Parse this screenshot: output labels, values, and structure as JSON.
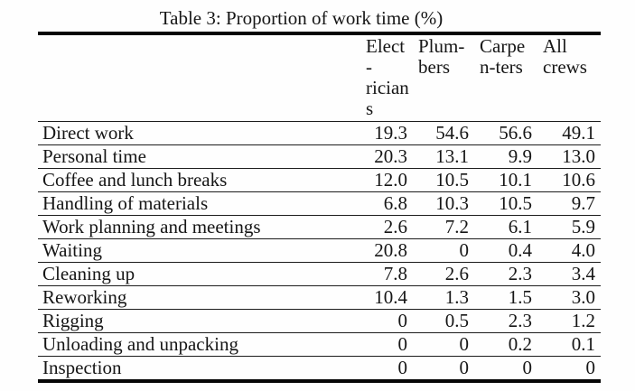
{
  "title": "Table 3: Proportion of work time (%)",
  "colors": {
    "ink": "#161616",
    "rule": "#050505",
    "background": "#fefefe"
  },
  "table": {
    "row_header_label": "",
    "columns": [
      {
        "name": "Electricians",
        "lines": [
          "Elect",
          "-",
          "rician",
          "s"
        ]
      },
      {
        "name": "Plumbers",
        "lines": [
          "Plum-",
          "bers"
        ]
      },
      {
        "name": "Carpenters",
        "lines": [
          "Carpe",
          "n-ters"
        ]
      },
      {
        "name": "All crews",
        "lines": [
          "All",
          "crews"
        ]
      }
    ],
    "rows": [
      {
        "label": "Direct work",
        "values": [
          "19.3",
          "54.6",
          "56.6",
          "49.1"
        ]
      },
      {
        "label": "Personal time",
        "values": [
          "20.3",
          "13.1",
          "9.9",
          "13.0"
        ]
      },
      {
        "label": "Coffee and lunch breaks",
        "values": [
          "12.0",
          "10.5",
          "10.1",
          "10.6"
        ]
      },
      {
        "label": "Handling of materials",
        "values": [
          "6.8",
          "10.3",
          "10.5",
          "9.7"
        ]
      },
      {
        "label": "Work planning and meetings",
        "values": [
          "2.6",
          "7.2",
          "6.1",
          "5.9"
        ]
      },
      {
        "label": "Waiting",
        "values": [
          "20.8",
          "0",
          "0.4",
          "4.0"
        ]
      },
      {
        "label": "Cleaning up",
        "values": [
          "7.8",
          "2.6",
          "2.3",
          "3.4"
        ]
      },
      {
        "label": "Reworking",
        "values": [
          "10.4",
          "1.3",
          "1.5",
          "3.0"
        ]
      },
      {
        "label": "Rigging",
        "values": [
          "0",
          "0.5",
          "2.3",
          "1.2"
        ]
      },
      {
        "label": "Unloading and unpacking",
        "values": [
          "0",
          "0",
          "0.2",
          "0.1"
        ]
      },
      {
        "label": "Inspection",
        "values": [
          "0",
          "0",
          "0",
          "0"
        ]
      }
    ]
  }
}
